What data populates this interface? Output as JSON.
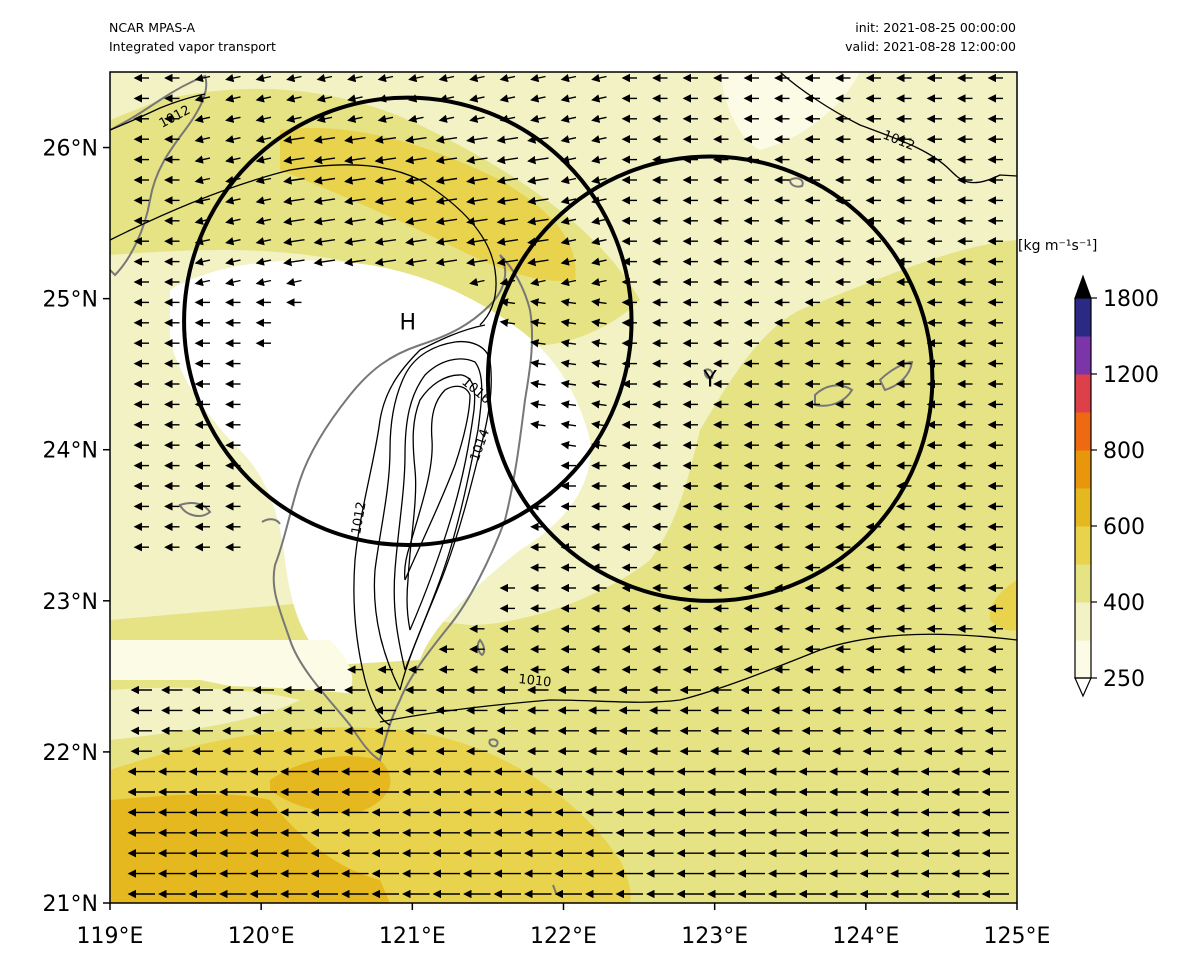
{
  "header": {
    "model": "NCAR MPAS-A",
    "field": "Integrated vapor transport",
    "init": "init: 2021-08-25 00:00:00",
    "valid": "valid: 2021-08-28 12:00:00"
  },
  "colorbar": {
    "units_label": "[kg m⁻¹s⁻¹]",
    "tick_labels": [
      "250",
      "400",
      "600",
      "800",
      "1200",
      "1800"
    ],
    "levels": [
      250,
      300,
      400,
      500,
      600,
      700,
      800,
      1000,
      1200,
      1400,
      1800
    ],
    "colors": [
      "#fbfbe6",
      "#f2f2c4",
      "#e5e384",
      "#e9d24c",
      "#e6b820",
      "#e8960c",
      "#ee6a10",
      "#dd4048",
      "#7b35a8",
      "#2a2a85"
    ],
    "extend": "both"
  },
  "map": {
    "lon_range": [
      119,
      125
    ],
    "lat_range": [
      21,
      26.5
    ],
    "x_tick_labels": [
      "119°E",
      "120°E",
      "121°E",
      "122°E",
      "123°E",
      "124°E",
      "125°E"
    ],
    "y_tick_labels": [
      "21°N",
      "22°N",
      "23°N",
      "24°N",
      "25°N",
      "26°N"
    ],
    "coastline_color": "#777777",
    "contour_labels": [
      "1012",
      "1012",
      "1016",
      "1014",
      "1012",
      "1010"
    ],
    "circles": [
      {
        "label": "H",
        "center_lon": 120.97,
        "center_lat": 24.85,
        "radius_lon": 1.48
      },
      {
        "label": "Y",
        "center_lon": 122.97,
        "center_lat": 24.47,
        "radius_lon": 1.47
      }
    ],
    "vector_direction": "westward"
  }
}
